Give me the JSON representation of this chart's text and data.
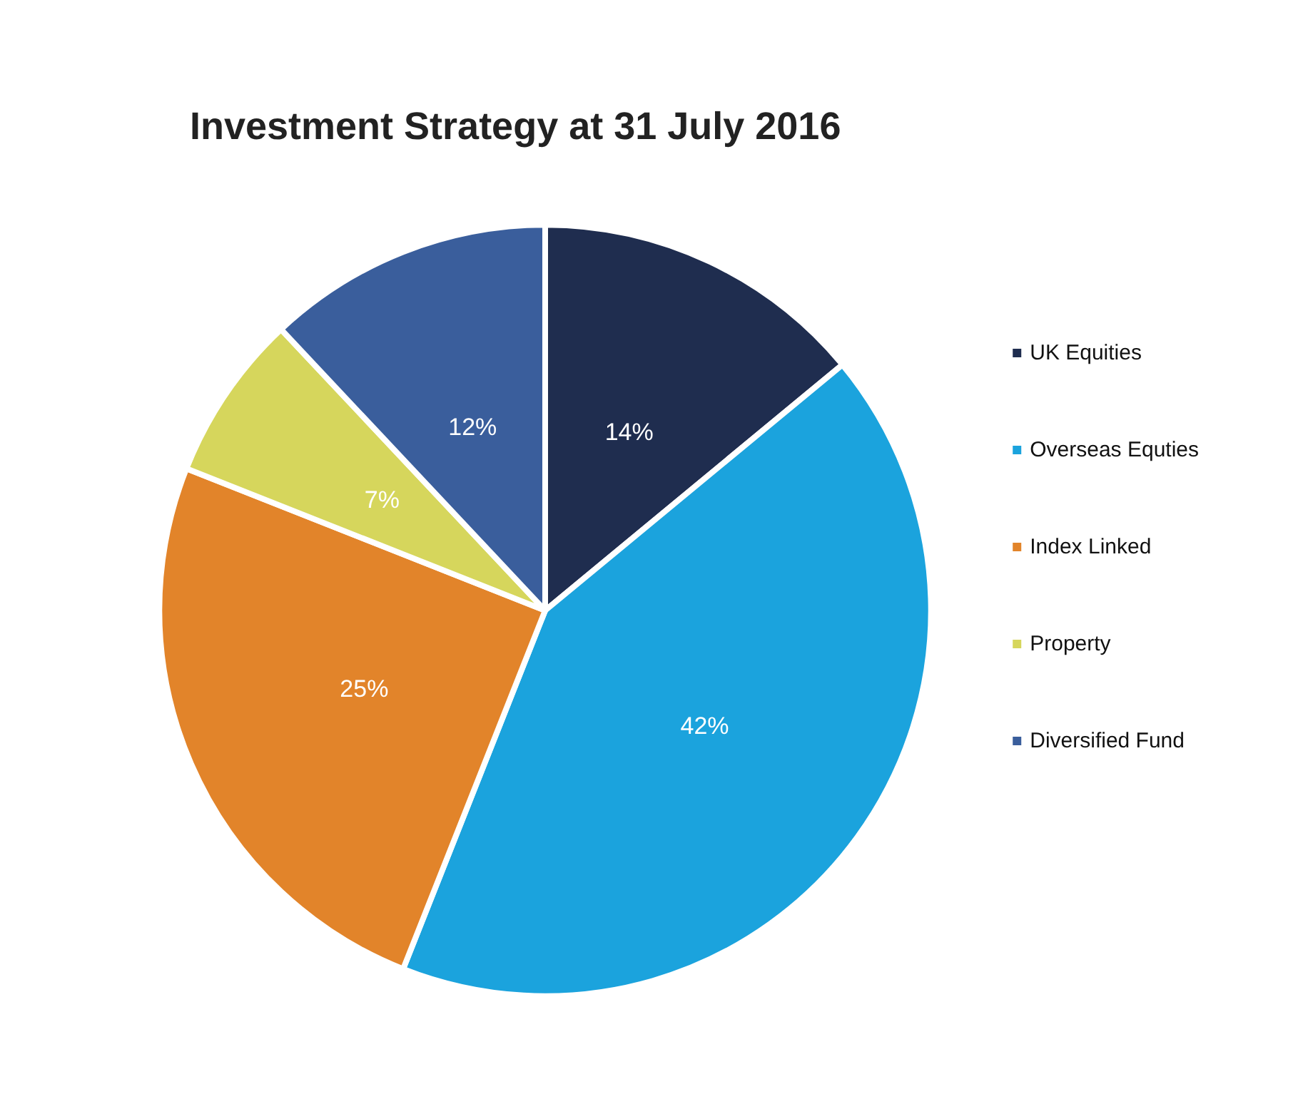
{
  "chart_data": {
    "type": "pie",
    "title": "Investment Strategy at 31 July 2016",
    "categories": [
      "UK Equities",
      "Overseas Equties",
      "Index Linked",
      "Property",
      "Diversified Fund"
    ],
    "values": [
      14,
      42,
      25,
      7,
      12
    ],
    "colors": [
      "#1f2d4f",
      "#1ba3dd",
      "#e2842a",
      "#d6d65c",
      "#3a5e9c"
    ],
    "value_labels": [
      "14%",
      "42%",
      "25%",
      "7%",
      "12%"
    ],
    "legend": "right"
  }
}
